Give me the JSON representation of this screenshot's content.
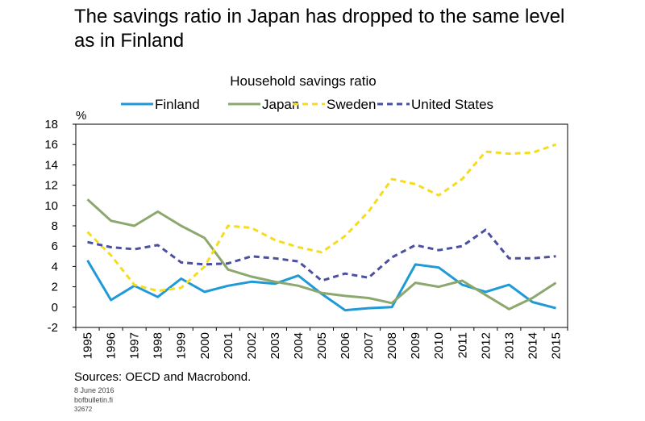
{
  "headline": "The savings ratio in Japan has dropped to the same level as in Finland",
  "chart_data": {
    "type": "line",
    "title": "Household savings ratio",
    "ylabel": "%",
    "xlabel": "",
    "ylim": [
      -2,
      18
    ],
    "yticks": [
      -2,
      0,
      2,
      4,
      6,
      8,
      10,
      12,
      14,
      16,
      18
    ],
    "x": [
      "1995",
      "1996",
      "1997",
      "1998",
      "1999",
      "2000",
      "2001",
      "2002",
      "2003",
      "2004",
      "2005",
      "2006",
      "2007",
      "2008",
      "2009",
      "2010",
      "2011",
      "2012",
      "2013",
      "2014",
      "2015"
    ],
    "legend_position": "top",
    "grid": false,
    "series": [
      {
        "name": "Finland",
        "color": "#1f9ad6",
        "dash": "solid",
        "values": [
          4.6,
          0.7,
          2.1,
          1.0,
          2.8,
          1.5,
          2.1,
          2.5,
          2.3,
          3.1,
          1.3,
          -0.3,
          -0.1,
          0.0,
          4.2,
          3.9,
          2.2,
          1.5,
          2.2,
          0.5,
          -0.1
        ]
      },
      {
        "name": "Japan",
        "color": "#8ca86e",
        "dash": "solid",
        "values": [
          10.6,
          8.5,
          8.0,
          9.4,
          8.0,
          6.8,
          3.7,
          3.0,
          2.5,
          2.1,
          1.4,
          1.1,
          0.9,
          0.4,
          2.4,
          2.0,
          2.6,
          1.2,
          -0.2,
          0.9,
          2.4
        ]
      },
      {
        "name": "Sweden",
        "color": "#f5dc1e",
        "dash": "dashed",
        "values": [
          7.4,
          5.1,
          2.2,
          1.6,
          1.9,
          4.0,
          8.0,
          7.8,
          6.6,
          5.9,
          5.4,
          7.0,
          9.4,
          12.6,
          12.1,
          11.0,
          12.6,
          15.3,
          15.1,
          15.2,
          16.0
        ]
      },
      {
        "name": "United States",
        "color": "#4a4fa0",
        "dash": "dashed",
        "values": [
          6.4,
          5.9,
          5.7,
          6.1,
          4.4,
          4.2,
          4.3,
          5.0,
          4.8,
          4.5,
          2.6,
          3.3,
          2.9,
          4.9,
          6.1,
          5.6,
          6.0,
          7.6,
          4.8,
          4.8,
          5.0
        ]
      }
    ]
  },
  "footer": {
    "sources": "Sources: OECD and Macrobond.",
    "date": "8 June 2016",
    "site": "bofbulletin.fi",
    "code": "32672"
  }
}
